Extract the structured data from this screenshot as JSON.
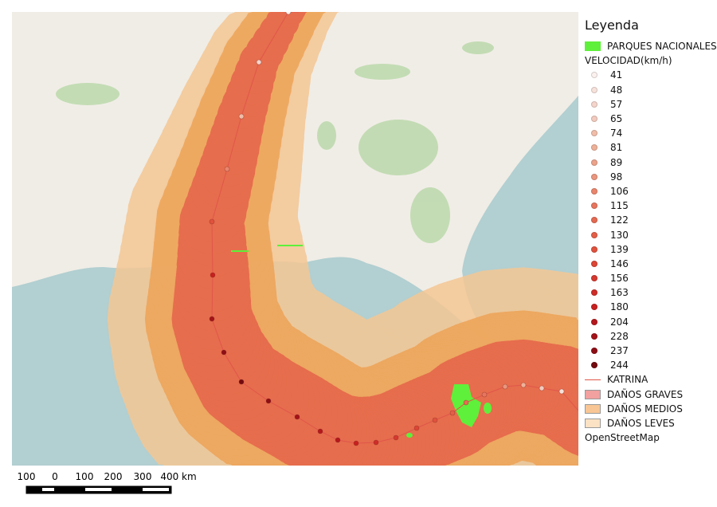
{
  "legend": {
    "title": "Leyenda",
    "parks": {
      "label": "PARQUES NACIONALES",
      "color": "#5ef03a"
    },
    "speed_title": "VELOCIDAD(km/h)",
    "speeds": [
      {
        "v": "41",
        "c": "#fbf1ee"
      },
      {
        "v": "48",
        "c": "#f7e2db"
      },
      {
        "v": "57",
        "c": "#f4d5cc"
      },
      {
        "v": "65",
        "c": "#f2cabe"
      },
      {
        "v": "74",
        "c": "#f0bda9"
      },
      {
        "v": "81",
        "c": "#eeb198"
      },
      {
        "v": "89",
        "c": "#eba38a"
      },
      {
        "v": "98",
        "c": "#ea967e"
      },
      {
        "v": "106",
        "c": "#e9856d"
      },
      {
        "v": "115",
        "c": "#e7755e"
      },
      {
        "v": "122",
        "c": "#e56a52"
      },
      {
        "v": "130",
        "c": "#e35f47"
      },
      {
        "v": "139",
        "c": "#e0523d"
      },
      {
        "v": "146",
        "c": "#dd4535"
      },
      {
        "v": "156",
        "c": "#d5392e"
      },
      {
        "v": "163",
        "c": "#cf2d28"
      },
      {
        "v": "180",
        "c": "#c8201f"
      },
      {
        "v": "204",
        "c": "#b5181c"
      },
      {
        "v": "228",
        "c": "#a31319"
      },
      {
        "v": "237",
        "c": "#8e0e15"
      },
      {
        "v": "244",
        "c": "#730a10"
      }
    ],
    "track": {
      "label": "KATRINA",
      "color": "#e0564a"
    },
    "zones": [
      {
        "label": "DAÑOS GRAVES",
        "color": "#f2a0a0"
      },
      {
        "label": "DAÑOS MEDIOS",
        "color": "#f8c694"
      },
      {
        "label": "DAÑOS LEVES",
        "color": "#fbe2c4"
      }
    ],
    "basemap": "OpenStreetMap"
  },
  "scalebar": {
    "labels": [
      "100",
      "0",
      "100",
      "200",
      "300",
      "400 km"
    ]
  }
}
